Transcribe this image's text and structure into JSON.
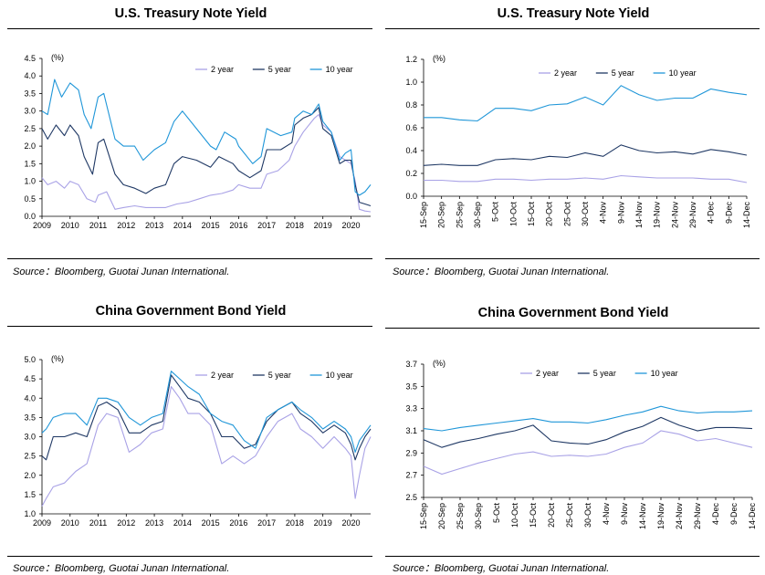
{
  "footnote": "Source：Bloomberg, Guotai Junan International.",
  "colors": {
    "y2": "#a9a2e6",
    "y5": "#1f3864",
    "y10": "#1f96d8"
  },
  "chart_data": [
    {
      "type": "line",
      "title": "U.S. Treasury Note Yield",
      "unit_label": "(%)",
      "x_tick_labels": [
        "2009",
        "2010",
        "2011",
        "2012",
        "2013",
        "2014",
        "2015",
        "2016",
        "2017",
        "2018",
        "2019",
        "2020"
      ],
      "x_range": [
        2009,
        2020.7
      ],
      "y_ticks": [
        "0.0",
        "0.5",
        "1.0",
        "1.5",
        "2.0",
        "2.5",
        "3.0",
        "3.5",
        "4.0",
        "4.5"
      ],
      "ylim": [
        0,
        4.5
      ],
      "legend_position": "top-right",
      "series": [
        {
          "name": "2 year",
          "color_key": "y2",
          "x": [
            2009,
            2009.2,
            2009.5,
            2009.8,
            2010,
            2010.3,
            2010.6,
            2010.9,
            2011,
            2011.3,
            2011.6,
            2011.9,
            2012.3,
            2012.7,
            2013,
            2013.4,
            2013.8,
            2014.2,
            2014.6,
            2015,
            2015.4,
            2015.8,
            2016,
            2016.4,
            2016.8,
            2017,
            2017.4,
            2017.8,
            2018,
            2018.3,
            2018.7,
            2018.85,
            2019,
            2019.3,
            2019.6,
            2019.8,
            2020,
            2020.15,
            2020.3,
            2020.5,
            2020.7
          ],
          "values": [
            1.1,
            0.9,
            1.0,
            0.8,
            1.0,
            0.9,
            0.5,
            0.4,
            0.6,
            0.7,
            0.2,
            0.25,
            0.3,
            0.25,
            0.25,
            0.25,
            0.35,
            0.4,
            0.5,
            0.6,
            0.65,
            0.75,
            0.9,
            0.8,
            0.8,
            1.2,
            1.3,
            1.6,
            2.0,
            2.4,
            2.8,
            2.9,
            2.6,
            2.4,
            1.7,
            1.6,
            1.5,
            1.0,
            0.2,
            0.15,
            0.13
          ]
        },
        {
          "name": "5 year",
          "color_key": "y5",
          "x": [
            2009,
            2009.2,
            2009.5,
            2009.8,
            2010,
            2010.3,
            2010.5,
            2010.8,
            2011,
            2011.2,
            2011.6,
            2011.9,
            2012.3,
            2012.7,
            2013,
            2013.4,
            2013.7,
            2014,
            2014.5,
            2015,
            2015.3,
            2015.8,
            2016,
            2016.4,
            2016.8,
            2017,
            2017.5,
            2017.9,
            2018,
            2018.3,
            2018.6,
            2018.85,
            2019,
            2019.3,
            2019.6,
            2019.8,
            2020,
            2020.15,
            2020.3,
            2020.5,
            2020.7
          ],
          "values": [
            2.5,
            2.2,
            2.6,
            2.3,
            2.6,
            2.3,
            1.7,
            1.2,
            2.1,
            2.2,
            1.2,
            0.9,
            0.8,
            0.65,
            0.8,
            0.9,
            1.5,
            1.7,
            1.6,
            1.4,
            1.7,
            1.5,
            1.3,
            1.1,
            1.3,
            1.9,
            1.9,
            2.1,
            2.6,
            2.8,
            2.9,
            3.1,
            2.5,
            2.3,
            1.5,
            1.6,
            1.6,
            0.9,
            0.4,
            0.35,
            0.3
          ]
        },
        {
          "name": "10 year",
          "color_key": "y10",
          "x": [
            2009,
            2009.2,
            2009.45,
            2009.7,
            2010,
            2010.3,
            2010.5,
            2010.75,
            2011,
            2011.2,
            2011.6,
            2011.9,
            2012.3,
            2012.6,
            2013,
            2013.4,
            2013.7,
            2014,
            2014.5,
            2015,
            2015.2,
            2015.5,
            2015.9,
            2016,
            2016.5,
            2016.8,
            2017,
            2017.5,
            2017.9,
            2018,
            2018.3,
            2018.6,
            2018.85,
            2019,
            2019.3,
            2019.6,
            2019.8,
            2020,
            2020.15,
            2020.3,
            2020.5,
            2020.7
          ],
          "values": [
            3.0,
            2.9,
            3.9,
            3.4,
            3.8,
            3.6,
            2.9,
            2.5,
            3.4,
            3.5,
            2.2,
            2.0,
            2.0,
            1.6,
            1.9,
            2.1,
            2.7,
            3.0,
            2.5,
            2.0,
            1.9,
            2.4,
            2.2,
            2.0,
            1.5,
            1.7,
            2.5,
            2.3,
            2.4,
            2.8,
            3.0,
            2.9,
            3.2,
            2.7,
            2.4,
            1.6,
            1.8,
            1.9,
            0.7,
            0.6,
            0.7,
            0.9
          ]
        }
      ]
    },
    {
      "type": "line",
      "title": "U.S. Treasury Note Yield",
      "unit_label": "(%)",
      "categories": [
        "15-Sep",
        "20-Sep",
        "25-Sep",
        "30-Sep",
        "5-Oct",
        "10-Oct",
        "15-Oct",
        "20-Oct",
        "25-Oct",
        "30-Oct",
        "4-Nov",
        "9-Nov",
        "14-Nov",
        "19-Nov",
        "24-Nov",
        "29-Nov",
        "4-Dec",
        "9-Dec",
        "14-Dec"
      ],
      "y_ticks": [
        "0.0",
        "0.2",
        "0.4",
        "0.6",
        "0.8",
        "1.0",
        "1.2"
      ],
      "ylim": [
        0,
        1.2
      ],
      "legend_position": "top-right",
      "series": [
        {
          "name": "2 year",
          "color_key": "y2",
          "values": [
            0.14,
            0.14,
            0.13,
            0.13,
            0.15,
            0.15,
            0.14,
            0.15,
            0.15,
            0.16,
            0.15,
            0.18,
            0.17,
            0.16,
            0.16,
            0.16,
            0.15,
            0.15,
            0.12
          ]
        },
        {
          "name": "5 year",
          "color_key": "y5",
          "values": [
            0.27,
            0.28,
            0.27,
            0.27,
            0.32,
            0.33,
            0.32,
            0.35,
            0.34,
            0.38,
            0.35,
            0.45,
            0.4,
            0.38,
            0.39,
            0.37,
            0.41,
            0.39,
            0.36
          ]
        },
        {
          "name": "10 year",
          "color_key": "y10",
          "values": [
            0.69,
            0.69,
            0.67,
            0.66,
            0.77,
            0.77,
            0.75,
            0.8,
            0.81,
            0.87,
            0.8,
            0.97,
            0.89,
            0.84,
            0.86,
            0.86,
            0.94,
            0.91,
            0.89
          ]
        }
      ]
    },
    {
      "type": "line",
      "title": "China Government Bond Yield",
      "unit_label": "(%)",
      "x_tick_labels": [
        "2009",
        "2010",
        "2011",
        "2012",
        "2013",
        "2014",
        "2015",
        "2016",
        "2017",
        "2018",
        "2019",
        "2020"
      ],
      "x_range": [
        2009,
        2020.7
      ],
      "y_ticks": [
        "1.0",
        "1.5",
        "2.0",
        "2.5",
        "3.0",
        "3.5",
        "4.0",
        "4.5",
        "5.0"
      ],
      "ylim": [
        1.0,
        5.0
      ],
      "legend_position": "top-right",
      "series": [
        {
          "name": "2 year",
          "color_key": "y2",
          "x": [
            2009,
            2009.15,
            2009.4,
            2009.8,
            2010.2,
            2010.6,
            2011,
            2011.3,
            2011.7,
            2012.1,
            2012.5,
            2012.9,
            2013.3,
            2013.6,
            2013.9,
            2014.2,
            2014.6,
            2015,
            2015.4,
            2015.8,
            2016.2,
            2016.6,
            2017,
            2017.4,
            2017.9,
            2018.2,
            2018.6,
            2019,
            2019.4,
            2019.8,
            2020,
            2020.15,
            2020.3,
            2020.5,
            2020.7
          ],
          "values": [
            1.2,
            1.4,
            1.7,
            1.8,
            2.1,
            2.3,
            3.3,
            3.6,
            3.5,
            2.6,
            2.8,
            3.1,
            3.2,
            4.3,
            4.0,
            3.6,
            3.6,
            3.3,
            2.3,
            2.5,
            2.3,
            2.5,
            3.0,
            3.4,
            3.6,
            3.2,
            3.0,
            2.7,
            3.0,
            2.7,
            2.5,
            1.4,
            2.0,
            2.7,
            3.0
          ]
        },
        {
          "name": "5 year",
          "color_key": "y5",
          "x": [
            2009,
            2009.15,
            2009.4,
            2009.8,
            2010.2,
            2010.6,
            2011,
            2011.3,
            2011.7,
            2012.1,
            2012.5,
            2012.9,
            2013.3,
            2013.6,
            2013.9,
            2014.2,
            2014.6,
            2015,
            2015.4,
            2015.8,
            2016.2,
            2016.6,
            2017,
            2017.4,
            2017.9,
            2018.2,
            2018.6,
            2019,
            2019.4,
            2019.8,
            2020,
            2020.15,
            2020.3,
            2020.5,
            2020.7
          ],
          "values": [
            2.5,
            2.4,
            3.0,
            3.0,
            3.1,
            3.0,
            3.8,
            3.9,
            3.7,
            3.1,
            3.1,
            3.3,
            3.4,
            4.6,
            4.3,
            4.0,
            3.9,
            3.6,
            3.0,
            3.0,
            2.7,
            2.8,
            3.4,
            3.7,
            3.9,
            3.6,
            3.4,
            3.1,
            3.3,
            3.1,
            2.8,
            2.4,
            2.7,
            3.0,
            3.2
          ]
        },
        {
          "name": "10 year",
          "color_key": "y10",
          "x": [
            2009,
            2009.15,
            2009.4,
            2009.8,
            2010.2,
            2010.6,
            2011,
            2011.3,
            2011.7,
            2012.1,
            2012.5,
            2012.9,
            2013.3,
            2013.6,
            2013.9,
            2014.2,
            2014.6,
            2015,
            2015.4,
            2015.8,
            2016.2,
            2016.6,
            2017,
            2017.4,
            2017.9,
            2018.2,
            2018.6,
            2019,
            2019.4,
            2019.8,
            2020,
            2020.15,
            2020.3,
            2020.5,
            2020.7
          ],
          "values": [
            3.1,
            3.2,
            3.5,
            3.6,
            3.6,
            3.3,
            4.0,
            4.0,
            3.9,
            3.5,
            3.3,
            3.5,
            3.6,
            4.7,
            4.5,
            4.3,
            4.1,
            3.6,
            3.4,
            3.3,
            2.9,
            2.7,
            3.5,
            3.7,
            3.9,
            3.7,
            3.5,
            3.2,
            3.4,
            3.2,
            3.0,
            2.6,
            2.9,
            3.1,
            3.3
          ]
        }
      ]
    },
    {
      "type": "line",
      "title": "China Government Bond Yield",
      "unit_label": "(%)",
      "categories": [
        "15-Sep",
        "20-Sep",
        "25-Sep",
        "30-Sep",
        "5-Oct",
        "10-Oct",
        "15-Oct",
        "20-Oct",
        "25-Oct",
        "30-Oct",
        "4-Nov",
        "9-Nov",
        "14-Nov",
        "19-Nov",
        "24-Nov",
        "29-Nov",
        "4-Dec",
        "9-Dec",
        "14-Dec"
      ],
      "y_ticks": [
        "2.5",
        "2.7",
        "2.9",
        "3.1",
        "3.3",
        "3.5",
        "3.7"
      ],
      "ylim": [
        2.5,
        3.7
      ],
      "legend_position": "top-right",
      "series": [
        {
          "name": "2 year",
          "color_key": "y2",
          "values": [
            2.78,
            2.71,
            2.76,
            2.81,
            2.85,
            2.89,
            2.91,
            2.87,
            2.88,
            2.87,
            2.89,
            2.95,
            2.99,
            3.1,
            3.07,
            3.01,
            3.03,
            2.99,
            2.95
          ]
        },
        {
          "name": "5 year",
          "color_key": "y5",
          "values": [
            3.02,
            2.95,
            3.0,
            3.03,
            3.07,
            3.1,
            3.15,
            3.01,
            2.99,
            2.98,
            3.02,
            3.09,
            3.14,
            3.22,
            3.15,
            3.1,
            3.13,
            3.13,
            3.12
          ]
        },
        {
          "name": "10 year",
          "color_key": "y10",
          "values": [
            3.12,
            3.1,
            3.13,
            3.15,
            3.17,
            3.19,
            3.21,
            3.18,
            3.18,
            3.17,
            3.2,
            3.24,
            3.27,
            3.32,
            3.28,
            3.26,
            3.27,
            3.27,
            3.28
          ]
        }
      ]
    }
  ]
}
